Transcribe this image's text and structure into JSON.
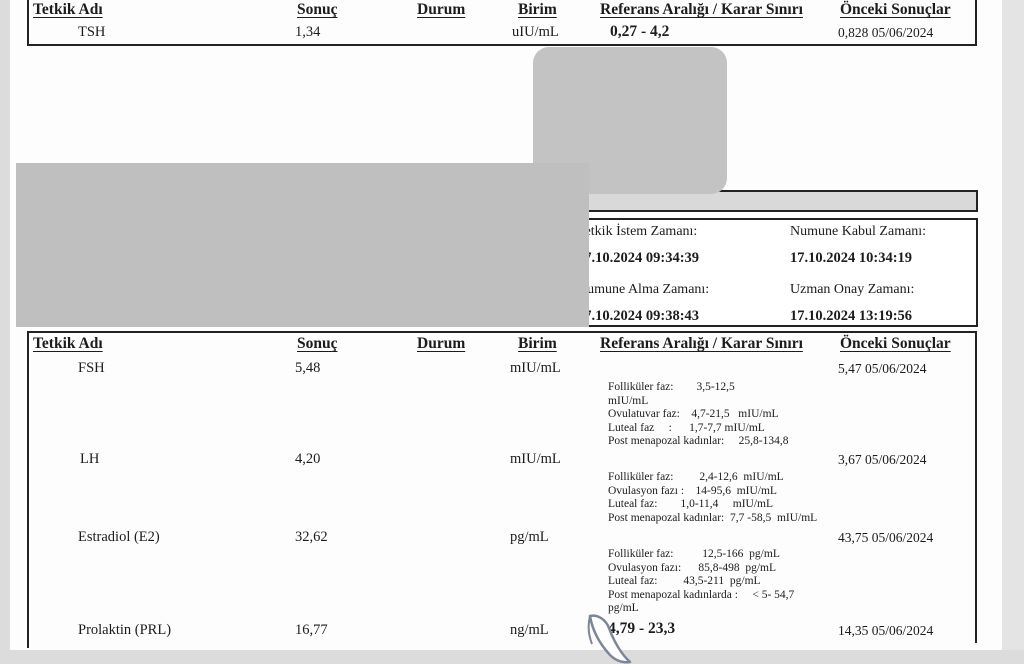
{
  "document": {
    "columns": {
      "name": "Tetkik Adı",
      "result": "Sonuç",
      "status": "Durum",
      "unit": "Birim",
      "reference": "Referans Aralığı / Karar Sınırı",
      "previous": "Önceki Sonuçlar"
    },
    "top_table": {
      "row": {
        "name": "TSH",
        "result": "1,34",
        "unit": "uIU/mL",
        "reference": "0,27 - 4,2",
        "previous": "0,828 05/06/2024"
      }
    },
    "timestamps": {
      "request_label": "Tetkik İstem Zamanı:",
      "request_value": "17.10.2024 09:34:39",
      "accept_label": "Numune Kabul Zamanı:",
      "accept_value": "17.10.2024 10:34:19",
      "sample_label": "Numune Alma Zamanı:",
      "sample_value": "17.10.2024 09:38:43",
      "approve_label": "Uzman Onay Zamanı:",
      "approve_value": "17.10.2024 13:19:56"
    },
    "main_table": {
      "rows": [
        {
          "name": "FSH",
          "result": "5,48",
          "unit": "mIU/mL",
          "previous": "5,47 05/06/2024",
          "reference_lines": [
            "Folliküler faz:        3,5-12,5",
            "mIU/mL",
            "Ovulatuvar faz:    4,7-21,5   mIU/mL",
            "Luteal faz     :      1,7-7,7 mIU/mL",
            "Post menapozal kadınlar:     25,8-134,8"
          ]
        },
        {
          "name": "LH",
          "result": "4,20",
          "unit": "mIU/mL",
          "previous": "3,67 05/06/2024",
          "reference_lines": [
            "Folliküler faz:         2,4-12,6  mIU/mL",
            "Ovulasyon fazı :    14-95,6  mIU/mL",
            "Luteal faz:        1,0-11,4     mIU/mL",
            "Post menapozal kadınlar:  7,7 -58,5  mIU/mL"
          ]
        },
        {
          "name": "Estradiol (E2)",
          "result": "32,62",
          "unit": "pg/mL",
          "previous": "43,75 05/06/2024",
          "reference_lines": [
            "Folliküler faz:          12,5-166  pg/mL",
            "Ovulasyon fazı:      85,8-498  pg/mL",
            "Luteal faz:         43,5-211  pg/mL",
            "Post menapozal kadınlarda :     < 5- 54,7",
            "pg/mL"
          ]
        },
        {
          "name": "Prolaktin (PRL)",
          "result": "16,77",
          "unit": "ng/mL",
          "previous": "14,35 05/06/2024",
          "reference_bold": "4,79 - 23,3"
        }
      ]
    },
    "colors": {
      "redaction_gray": "#bfbfbf",
      "bar_gray": "#d9d9d9",
      "border": "#222222"
    }
  }
}
